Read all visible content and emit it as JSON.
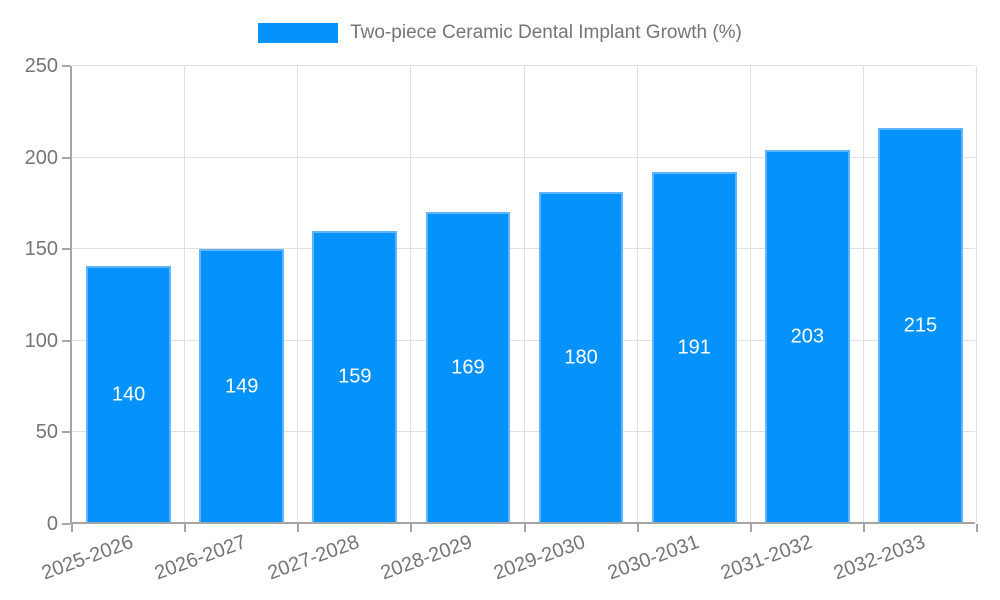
{
  "legend": {
    "label": "Two-piece Ceramic Dental Implant Growth (%)"
  },
  "chart_data": {
    "type": "bar",
    "title": "Two-piece Ceramic Dental Implant Growth (%)",
    "categories": [
      "2025-2026",
      "2026-2027",
      "2027-2028",
      "2028-2029",
      "2029-2030",
      "2030-2031",
      "2031-2032",
      "2032-2033"
    ],
    "values": [
      140,
      149,
      159,
      169,
      180,
      191,
      203,
      215
    ],
    "xlabel": "",
    "ylabel": "",
    "ylim": [
      0,
      250
    ],
    "yticks": [
      0,
      50,
      100,
      150,
      200,
      250
    ],
    "grid": true,
    "legend_position": "top-center",
    "x_tick_rotation_deg": -20,
    "bar_width_fraction": 0.75,
    "value_labels": "centered-inside-white",
    "colors": {
      "bar_fill": "#0692fb",
      "bar_border": "#5fb4fc",
      "value_label": "#ffffff",
      "grid_line": "#e0e0e0",
      "axis_line": "#a5a5a5",
      "tick_label": "#757575",
      "background": "#ffffff"
    }
  }
}
